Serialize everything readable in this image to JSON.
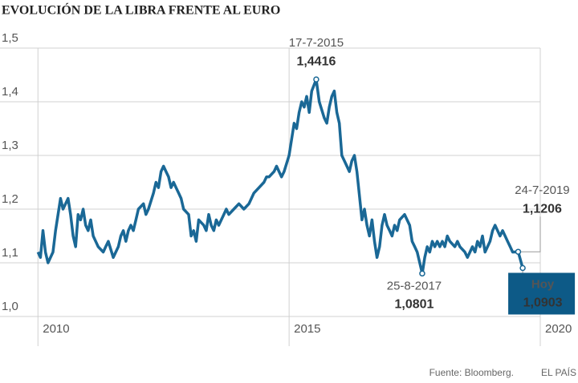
{
  "chart_data": {
    "type": "line",
    "title": "EVOLUCIÓN DE LA LIBRA FRENTE AL EURO",
    "source": "Fuente: Bloomberg.",
    "brand": "EL PAÍS",
    "color": "#1a6896",
    "highlight_color": "#0d5a87",
    "xlim": [
      2009.9,
      2020
    ],
    "xticks": [
      2010,
      2015,
      2020
    ],
    "ylim": [
      1.0,
      1.5
    ],
    "yticks": [
      {
        "value": 1.0,
        "label": "1,0"
      },
      {
        "value": 1.1,
        "label": "1,1"
      },
      {
        "value": 1.2,
        "label": "1,2"
      },
      {
        "value": 1.3,
        "label": "1,3"
      },
      {
        "value": 1.4,
        "label": "1,4"
      },
      {
        "value": 1.5,
        "label": "1,5"
      }
    ],
    "grid": true,
    "x": [
      2010.0,
      2010.05,
      2010.1,
      2010.15,
      2010.2,
      2010.3,
      2010.35,
      2010.4,
      2010.45,
      2010.5,
      2010.55,
      2010.6,
      2010.65,
      2010.7,
      2010.75,
      2010.8,
      2010.85,
      2010.9,
      2010.95,
      2011.0,
      2011.05,
      2011.1,
      2011.15,
      2011.2,
      2011.3,
      2011.35,
      2011.4,
      2011.5,
      2011.6,
      2011.65,
      2011.7,
      2011.75,
      2011.8,
      2011.85,
      2011.9,
      2011.95,
      2012.0,
      2012.1,
      2012.15,
      2012.2,
      2012.3,
      2012.35,
      2012.4,
      2012.45,
      2012.5,
      2012.55,
      2012.6,
      2012.65,
      2012.7,
      2012.75,
      2012.8,
      2012.85,
      2012.9,
      2013.0,
      2013.05,
      2013.1,
      2013.15,
      2013.2,
      2013.3,
      2013.35,
      2013.4,
      2013.45,
      2013.5,
      2013.55,
      2013.6,
      2013.7,
      2013.75,
      2013.8,
      2013.9,
      2014.0,
      2014.1,
      2014.2,
      2014.3,
      2014.4,
      2014.5,
      2014.55,
      2014.6,
      2014.7,
      2014.75,
      2014.8,
      2014.85,
      2014.9,
      2015.0,
      2015.1,
      2015.15,
      2015.2,
      2015.25,
      2015.3,
      2015.35,
      2015.4,
      2015.45,
      2015.54,
      2015.6,
      2015.7,
      2015.75,
      2015.8,
      2015.85,
      2015.9,
      2015.95,
      2016.0,
      2016.05,
      2016.1,
      2016.15,
      2016.2,
      2016.25,
      2016.3,
      2016.35,
      2016.45,
      2016.5,
      2016.55,
      2016.6,
      2016.65,
      2016.7,
      2016.75,
      2016.8,
      2016.85,
      2016.9,
      2016.95,
      2017.0,
      2017.05,
      2017.1,
      2017.15,
      2017.2,
      2017.3,
      2017.4,
      2017.45,
      2017.5,
      2017.55,
      2017.65,
      2017.7,
      2017.75,
      2017.8,
      2017.85,
      2017.9,
      2017.95,
      2018.0,
      2018.05,
      2018.1,
      2018.15,
      2018.2,
      2018.3,
      2018.35,
      2018.4,
      2018.5,
      2018.55,
      2018.6,
      2018.65,
      2018.7,
      2018.75,
      2018.8,
      2018.85,
      2018.9,
      2019.0,
      2019.05,
      2019.1,
      2019.15,
      2019.2,
      2019.25,
      2019.3,
      2019.35,
      2019.4,
      2019.45,
      2019.56,
      2019.65
    ],
    "values": [
      1.12,
      1.11,
      1.16,
      1.12,
      1.1,
      1.12,
      1.16,
      1.19,
      1.22,
      1.2,
      1.21,
      1.22,
      1.19,
      1.15,
      1.13,
      1.19,
      1.18,
      1.2,
      1.17,
      1.16,
      1.18,
      1.15,
      1.14,
      1.13,
      1.12,
      1.13,
      1.14,
      1.11,
      1.13,
      1.15,
      1.16,
      1.14,
      1.16,
      1.17,
      1.16,
      1.18,
      1.2,
      1.21,
      1.19,
      1.2,
      1.23,
      1.25,
      1.24,
      1.27,
      1.28,
      1.27,
      1.26,
      1.24,
      1.25,
      1.24,
      1.23,
      1.22,
      1.2,
      1.19,
      1.15,
      1.16,
      1.14,
      1.18,
      1.17,
      1.16,
      1.19,
      1.17,
      1.16,
      1.18,
      1.17,
      1.19,
      1.2,
      1.19,
      1.2,
      1.21,
      1.2,
      1.21,
      1.23,
      1.24,
      1.25,
      1.26,
      1.26,
      1.27,
      1.28,
      1.27,
      1.26,
      1.27,
      1.3,
      1.36,
      1.35,
      1.38,
      1.4,
      1.39,
      1.41,
      1.38,
      1.42,
      1.4416,
      1.4,
      1.37,
      1.36,
      1.39,
      1.41,
      1.42,
      1.38,
      1.36,
      1.3,
      1.29,
      1.28,
      1.27,
      1.29,
      1.3,
      1.27,
      1.18,
      1.2,
      1.17,
      1.15,
      1.18,
      1.14,
      1.11,
      1.13,
      1.17,
      1.19,
      1.17,
      1.16,
      1.15,
      1.17,
      1.16,
      1.18,
      1.19,
      1.17,
      1.14,
      1.13,
      1.12,
      1.0801,
      1.11,
      1.13,
      1.12,
      1.14,
      1.13,
      1.14,
      1.13,
      1.14,
      1.13,
      1.15,
      1.14,
      1.13,
      1.14,
      1.13,
      1.12,
      1.11,
      1.12,
      1.13,
      1.12,
      1.14,
      1.13,
      1.15,
      1.12,
      1.14,
      1.16,
      1.17,
      1.16,
      1.15,
      1.16,
      1.15,
      1.14,
      1.13,
      1.12,
      1.1206,
      1.0903
    ],
    "annotations": [
      {
        "point": 91,
        "date": "17-7-2015",
        "label": "1,4416"
      },
      {
        "point": 128,
        "date": "25-8-2017",
        "label": "1,0801"
      },
      {
        "point": 162,
        "date": "24-7-2019",
        "label": "1,1206"
      },
      {
        "point": 163,
        "date": "Hoy",
        "label": "1,0903"
      }
    ]
  }
}
